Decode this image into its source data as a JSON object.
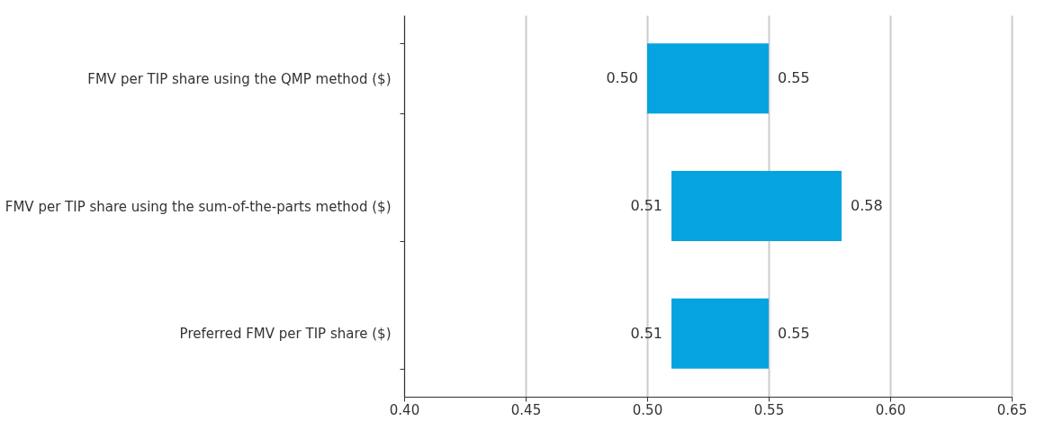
{
  "chart_data": {
    "type": "bar",
    "orientation": "horizontal",
    "categories": [
      "FMV per TIP share using the QMP method ($)",
      "FMV per TIP share using the sum-of-the-parts method ($)",
      "Preferred FMV per TIP share ($)"
    ],
    "base": [
      0.5,
      0.51,
      0.51
    ],
    "values": [
      0.05,
      0.07,
      0.04
    ],
    "color": "#05a3e0",
    "xlim": [
      0.4,
      0.65
    ],
    "xticks": [
      {
        "value": 0.4,
        "label": "0.40"
      },
      {
        "value": 0.45,
        "label": "0.45"
      },
      {
        "value": 0.5,
        "label": "0.50"
      },
      {
        "value": 0.55,
        "label": "0.55"
      },
      {
        "value": 0.6,
        "label": "0.60"
      },
      {
        "value": 0.65,
        "label": "0.65"
      }
    ],
    "grid": "x",
    "annotations": [
      {
        "text": "0.50",
        "x": 0.5,
        "y": "FMV per TIP share using the QMP method ($)"
      },
      {
        "text": "0.55",
        "x": 0.55,
        "y": "FMV per TIP share using the QMP method ($)"
      },
      {
        "text": "0.51",
        "x": 0.51,
        "y": "FMV per TIP share using the sum-of-the-parts method ($)"
      },
      {
        "text": "0.58",
        "x": 0.58,
        "y": "FMV per TIP share using the sum-of-the-parts method ($)"
      },
      {
        "text": "0.51",
        "x": 0.51,
        "y": "Preferred FMV per TIP share ($)"
      },
      {
        "text": "0.55",
        "x": 0.55,
        "y": "Preferred FMV per TIP share ($)"
      }
    ]
  }
}
